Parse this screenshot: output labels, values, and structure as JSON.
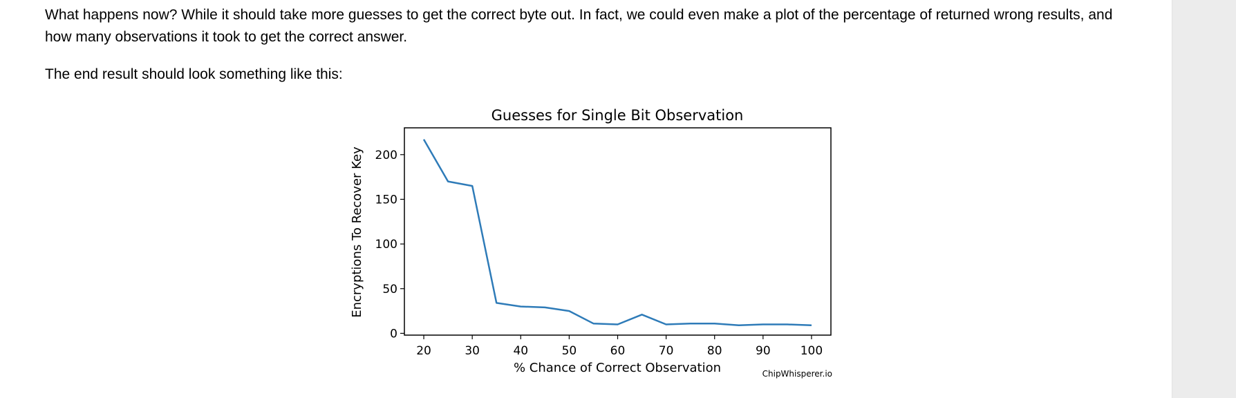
{
  "article": {
    "paragraph1": "What happens now? While it should take more guesses to get the correct byte out. In fact, we could even make a plot of the percentage of returned wrong results, and how many observations it took to get the correct answer.",
    "paragraph2": "The end result should look something like this:"
  },
  "figure": {
    "watermark": "ChipWhisperer.io"
  },
  "chart_data": {
    "type": "line",
    "title": "Guesses for Single Bit Observation",
    "xlabel": "% Chance of Correct Observation",
    "ylabel": "Encryptions To Recover Key",
    "xlim": [
      16,
      104
    ],
    "ylim": [
      -2,
      230
    ],
    "xticks": [
      20,
      30,
      40,
      50,
      60,
      70,
      80,
      90,
      100
    ],
    "yticks": [
      0,
      50,
      100,
      150,
      200
    ],
    "grid": false,
    "color": "#2e7bb8",
    "series": [
      {
        "x": [
          20,
          25,
          30,
          35,
          40,
          45,
          50,
          55,
          60,
          65,
          70,
          75,
          80,
          85,
          90,
          95,
          100
        ],
        "y": [
          217,
          170,
          165,
          34,
          30,
          29,
          25,
          11,
          10,
          21,
          10,
          11,
          11,
          9,
          10,
          10,
          9
        ]
      }
    ]
  }
}
